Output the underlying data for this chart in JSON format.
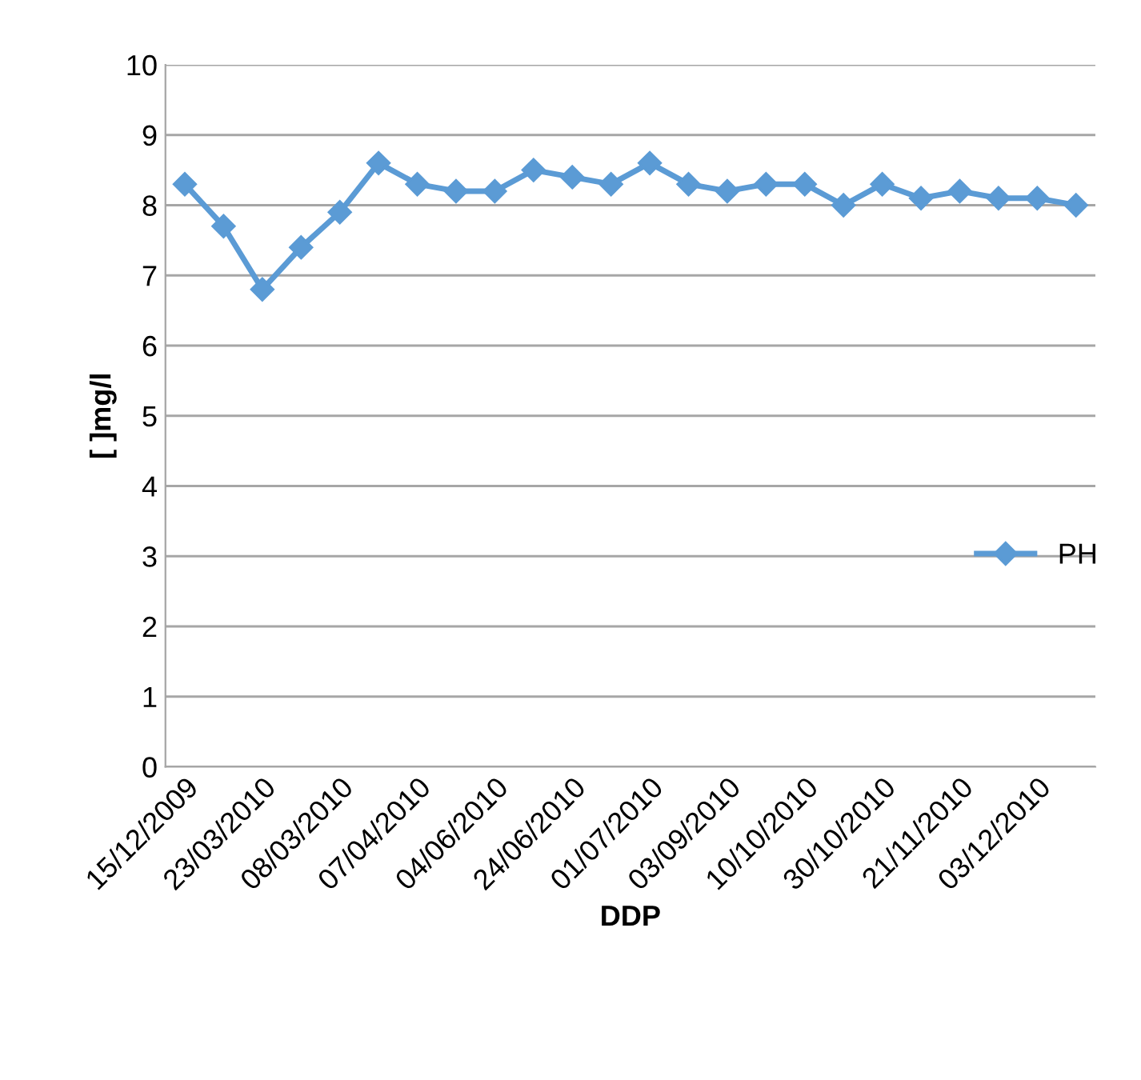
{
  "chart_data": {
    "type": "line",
    "xlabel": "DDP",
    "ylabel": "[ ]mg/l",
    "categories": [
      "15/12/2009",
      null,
      "23/03/2010",
      null,
      "08/03/2010",
      null,
      "07/04/2010",
      null,
      "04/06/2010",
      null,
      "24/06/2010",
      null,
      "01/07/2010",
      null,
      "03/09/2010",
      null,
      "10/10/2010",
      null,
      "30/10/2010",
      null,
      "21/11/2010",
      null,
      "03/12/2010",
      null
    ],
    "series": [
      {
        "name": "PH",
        "color": "#5b9bd5",
        "values": [
          8.3,
          7.7,
          6.8,
          7.4,
          7.9,
          8.6,
          8.3,
          8.2,
          8.2,
          8.5,
          8.4,
          8.3,
          8.6,
          8.3,
          8.2,
          8.3,
          8.3,
          8.0,
          8.3,
          8.1,
          8.2,
          8.1,
          8.1,
          8.0
        ]
      }
    ],
    "ylim": [
      0,
      10
    ],
    "yticks": [
      0,
      1,
      2,
      3,
      4,
      5,
      6,
      7,
      8,
      9,
      10
    ],
    "grid": "y",
    "legend": "right",
    "marker": "diamond",
    "line_style": "solid"
  }
}
